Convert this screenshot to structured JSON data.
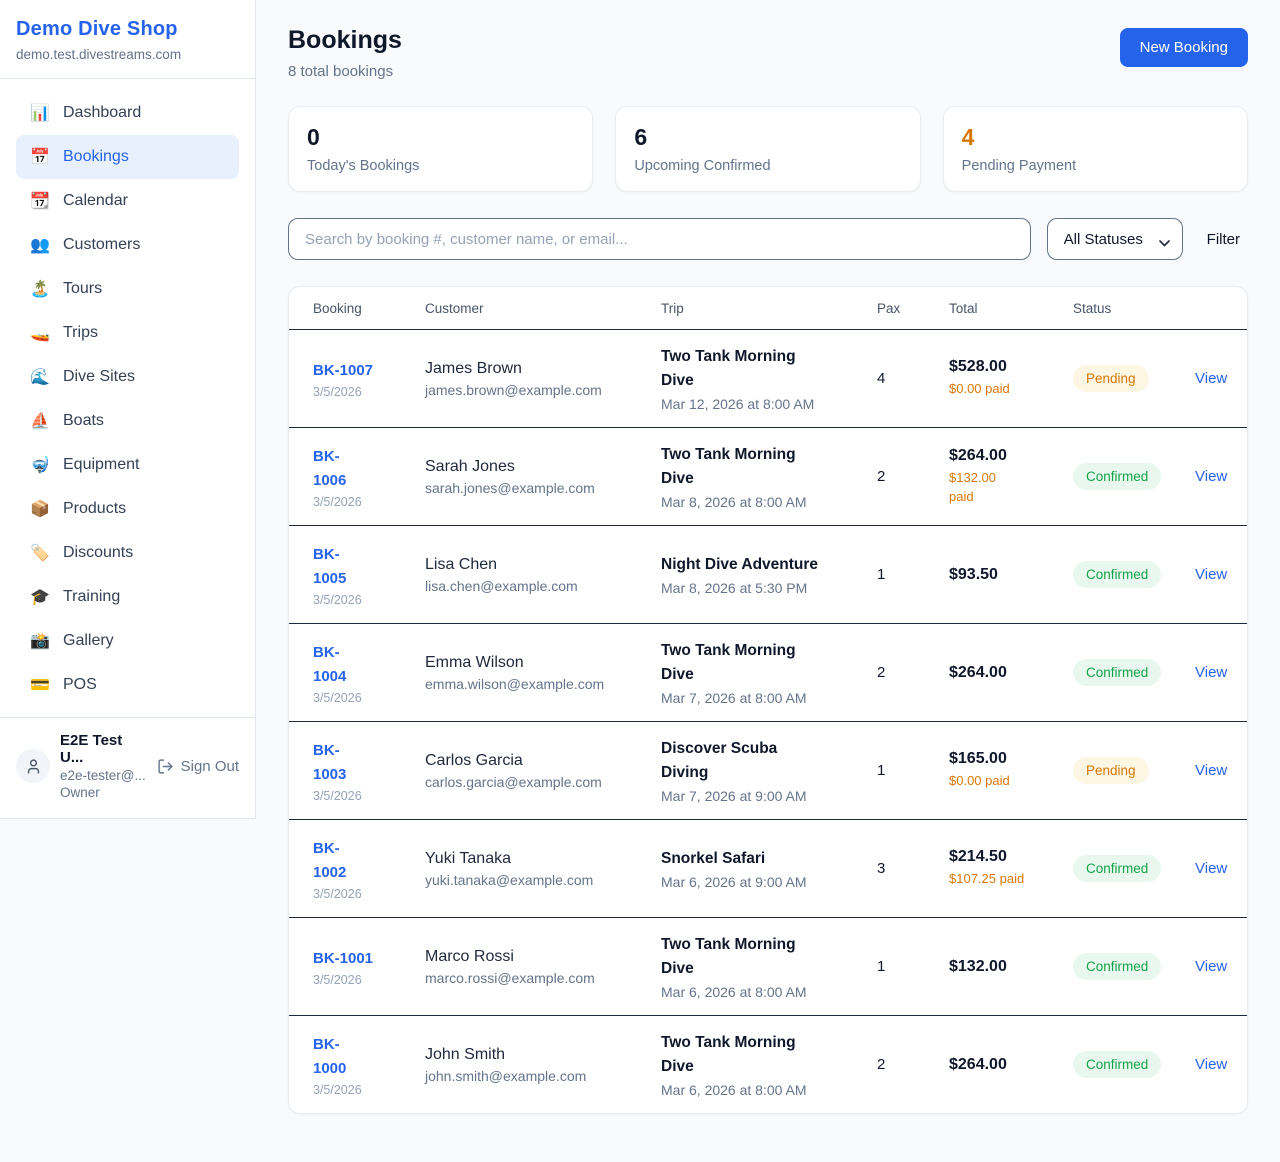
{
  "colors": {
    "accent": "#2563eb",
    "paid_orange": "#d97706",
    "dark_text": "#0f172a"
  },
  "sidebar": {
    "shop_name": "Demo Dive Shop",
    "shop_domain": "demo.test.divestreams.com",
    "nav": [
      {
        "label": "Dashboard",
        "icon": "📊",
        "icon_name": "bar-chart-icon",
        "active": false
      },
      {
        "label": "Bookings",
        "icon": "📅",
        "icon_name": "calendar-date-icon",
        "active": true
      },
      {
        "label": "Calendar",
        "icon": "📆",
        "icon_name": "tear-off-calendar-icon",
        "active": false
      },
      {
        "label": "Customers",
        "icon": "👥",
        "icon_name": "people-icon",
        "active": false
      },
      {
        "label": "Tours",
        "icon": "🏝️",
        "icon_name": "island-icon",
        "active": false
      },
      {
        "label": "Trips",
        "icon": "🚤",
        "icon_name": "speedboat-icon",
        "active": false
      },
      {
        "label": "Dive Sites",
        "icon": "🌊",
        "icon_name": "wave-icon",
        "active": false
      },
      {
        "label": "Boats",
        "icon": "⛵",
        "icon_name": "sailboat-icon",
        "active": false
      },
      {
        "label": "Equipment",
        "icon": "🤿",
        "icon_name": "diving-mask-icon",
        "active": false
      },
      {
        "label": "Products",
        "icon": "📦",
        "icon_name": "package-icon",
        "active": false
      },
      {
        "label": "Discounts",
        "icon": "🏷️",
        "icon_name": "tag-icon",
        "active": false
      },
      {
        "label": "Training",
        "icon": "🎓",
        "icon_name": "graduation-cap-icon",
        "active": false
      },
      {
        "label": "Gallery",
        "icon": "📸",
        "icon_name": "camera-flash-icon",
        "active": false
      },
      {
        "label": "POS",
        "icon": "💳",
        "icon_name": "credit-card-icon",
        "active": false
      }
    ],
    "user": {
      "name": "E2E Test U...",
      "email": "e2e-tester@...",
      "role": "Owner",
      "sign_out_label": "Sign Out"
    }
  },
  "header": {
    "title": "Bookings",
    "subtitle": "8 total bookings",
    "new_booking_label": "New Booking"
  },
  "stats": [
    {
      "value": "0",
      "label": "Today's Bookings",
      "color": "#0f172a"
    },
    {
      "value": "6",
      "label": "Upcoming Confirmed",
      "color": "#0f172a"
    },
    {
      "value": "4",
      "label": "Pending Payment",
      "color": "#d97706"
    }
  ],
  "filters": {
    "search_placeholder": "Search by booking #, customer name, or email...",
    "status_selected": "All Statuses",
    "filter_label": "Filter"
  },
  "table": {
    "columns": [
      "Booking",
      "Customer",
      "Trip",
      "Pax",
      "Total",
      "Status"
    ],
    "view_label": "View",
    "status_colors": {
      "Pending": {
        "text": "#d97706",
        "bg": "#fdf6e3"
      },
      "Confirmed": {
        "text": "#16a34a",
        "bg": "#e8f8ef"
      }
    },
    "rows": [
      {
        "id": "BK-1007",
        "date": "3/5/2026",
        "customer": "James Brown",
        "email": "james.brown@example.com",
        "trip": "Two Tank Morning\nDive",
        "trip_datetime": "Mar 12, 2026 at 8:00 AM",
        "pax": "4",
        "total": "$528.00",
        "paid": "$0.00 paid",
        "status": "Pending"
      },
      {
        "id": "BK-\n1006",
        "date": "3/5/2026",
        "customer": "Sarah Jones",
        "email": "sarah.jones@example.com",
        "trip": "Two Tank Morning\nDive",
        "trip_datetime": "Mar 8, 2026 at 8:00 AM",
        "pax": "2",
        "total": "$264.00",
        "paid": "$132.00\npaid",
        "status": "Confirmed"
      },
      {
        "id": "BK-\n1005",
        "date": "3/5/2026",
        "customer": "Lisa Chen",
        "email": "lisa.chen@example.com",
        "trip": "Night Dive Adventure",
        "trip_datetime": "Mar 8, 2026 at 5:30 PM",
        "pax": "1",
        "total": "$93.50",
        "paid": null,
        "status": "Confirmed"
      },
      {
        "id": "BK-\n1004",
        "date": "3/5/2026",
        "customer": "Emma Wilson",
        "email": "emma.wilson@example.com",
        "trip": "Two Tank Morning\nDive",
        "trip_datetime": "Mar 7, 2026 at 8:00 AM",
        "pax": "2",
        "total": "$264.00",
        "paid": null,
        "status": "Confirmed"
      },
      {
        "id": "BK-\n1003",
        "date": "3/5/2026",
        "customer": "Carlos Garcia",
        "email": "carlos.garcia@example.com",
        "trip": "Discover Scuba\nDiving",
        "trip_datetime": "Mar 7, 2026 at 9:00 AM",
        "pax": "1",
        "total": "$165.00",
        "paid": "$0.00 paid",
        "status": "Pending"
      },
      {
        "id": "BK-\n1002",
        "date": "3/5/2026",
        "customer": "Yuki Tanaka",
        "email": "yuki.tanaka@example.com",
        "trip": "Snorkel Safari",
        "trip_datetime": "Mar 6, 2026 at 9:00 AM",
        "pax": "3",
        "total": "$214.50",
        "paid": "$107.25 paid",
        "status": "Confirmed"
      },
      {
        "id": "BK-1001",
        "date": "3/5/2026",
        "customer": "Marco Rossi",
        "email": "marco.rossi@example.com",
        "trip": "Two Tank Morning\nDive",
        "trip_datetime": "Mar 6, 2026 at 8:00 AM",
        "pax": "1",
        "total": "$132.00",
        "paid": null,
        "status": "Confirmed"
      },
      {
        "id": "BK-\n1000",
        "date": "3/5/2026",
        "customer": "John Smith",
        "email": "john.smith@example.com",
        "trip": "Two Tank Morning\nDive",
        "trip_datetime": "Mar 6, 2026 at 8:00 AM",
        "pax": "2",
        "total": "$264.00",
        "paid": null,
        "status": "Confirmed"
      }
    ]
  }
}
